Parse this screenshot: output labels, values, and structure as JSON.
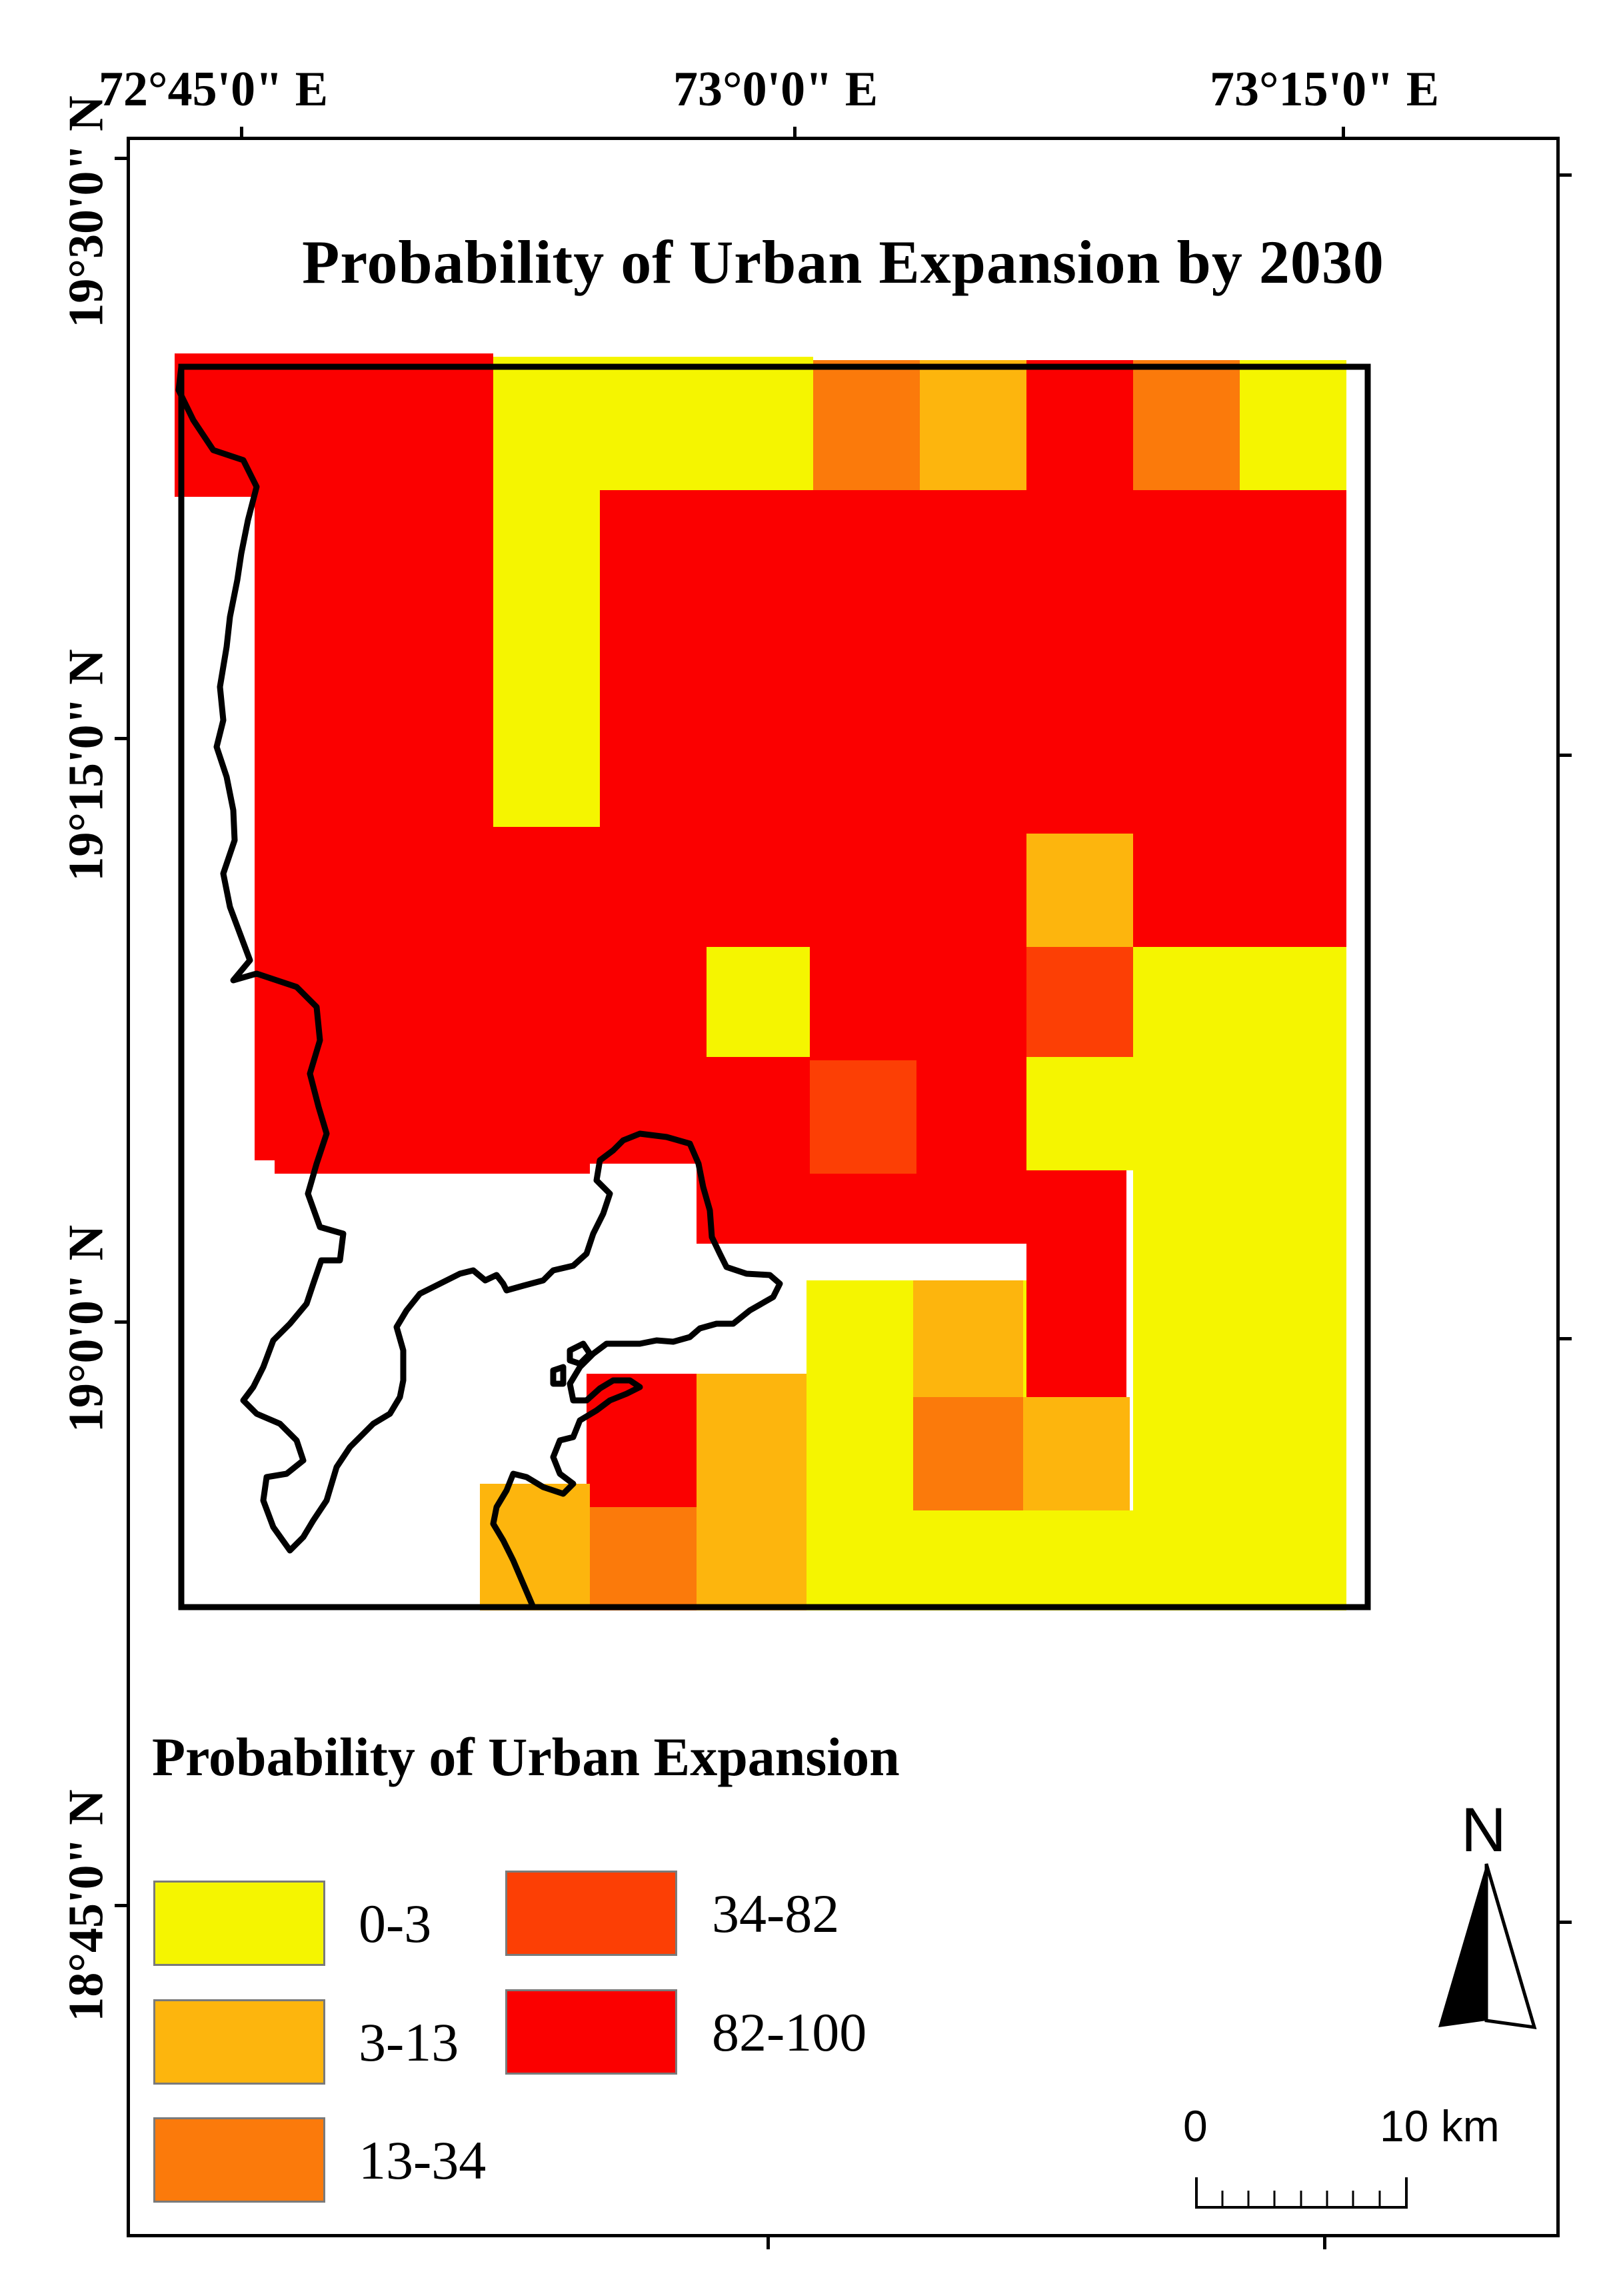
{
  "title": "Probability of Urban Expansion by 2030",
  "longitude_labels": [
    "72°45'0\" E",
    "73°0'0\" E",
    "73°15'0\" E"
  ],
  "latitude_labels": [
    "19°30'0\" N",
    "19°15'0\" N",
    "19°0'0\" N",
    "18°45'0\" N"
  ],
  "legend": {
    "title": "Probability of Urban Expansion",
    "classes": [
      {
        "label": "0-3",
        "color": "#f5f500"
      },
      {
        "label": "3-13",
        "color": "#fdb50d"
      },
      {
        "label": "13-34",
        "color": "#fb7a0b"
      },
      {
        "label": "34-82",
        "color": "#fc3f05"
      },
      {
        "label": "82-100",
        "color": "#fb0000"
      }
    ]
  },
  "north_arrow": {
    "label": "N",
    "icon": "north-arrow-icon"
  },
  "scale_bar": {
    "start_label": "0",
    "end_label": "10 km"
  }
}
